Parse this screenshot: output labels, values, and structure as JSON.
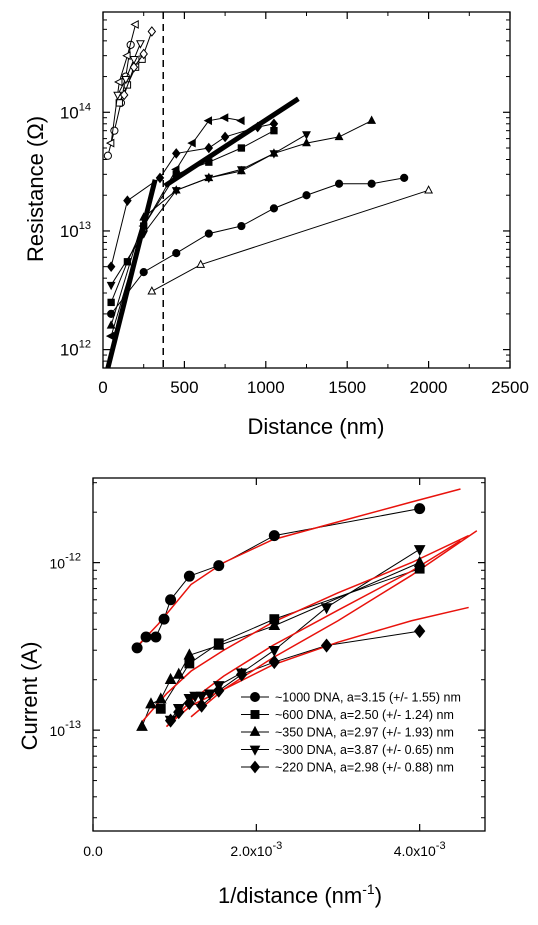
{
  "chart_data": [
    {
      "type": "line",
      "xlabel": "Distance (nm)",
      "ylabel": "Resistance (Ω)",
      "xlim": [
        0,
        2500
      ],
      "ylim": [
        700000000000.0,
        700000000000000.0
      ],
      "yscale": "log",
      "xticks": [
        0,
        500,
        1000,
        1500,
        2000,
        2500
      ],
      "xtick_labels": [
        "0",
        "500",
        "1000",
        "1500",
        "2000",
        "2500"
      ],
      "yticks": [
        1000000000000.0,
        10000000000000.0,
        100000000000000.0
      ],
      "ytick_labels": [
        {
          "base": "10",
          "exp": "12"
        },
        {
          "base": "10",
          "exp": "13"
        },
        {
          "base": "10",
          "exp": "14"
        }
      ],
      "vline_x": 370,
      "series": [
        {
          "marker": "circle",
          "filled": true,
          "x": [
            50,
            250,
            450,
            650,
            850,
            1050,
            1250,
            1450,
            1650,
            1850
          ],
          "y": [
            2000000000000.0,
            4500000000000.0,
            6500000000000.0,
            9500000000000.0,
            11000000000000.0,
            15500000000000.0,
            20000000000000.0,
            25000000000000.0,
            25000000000000.0,
            28000000000000.0
          ]
        },
        {
          "marker": "triangle-up",
          "filled": false,
          "x": [
            300,
            600,
            2000
          ],
          "y": [
            3100000000000.0,
            5200000000000.0,
            22000000000000.0
          ]
        },
        {
          "marker": "diamond",
          "filled": true,
          "x": [
            50,
            150,
            350,
            450,
            650,
            750,
            950,
            1050
          ],
          "y": [
            5000000000000.0,
            18000000000000.0,
            28000000000000.0,
            45000000000000.0,
            50000000000000.0,
            62000000000000.0,
            75000000000000.0,
            80000000000000.0
          ]
        },
        {
          "marker": "triangle-left",
          "filled": true,
          "x": [
            50,
            250,
            450,
            550,
            650,
            750,
            850
          ],
          "y": [
            1300000000000.0,
            11000000000000.0,
            33000000000000.0,
            55000000000000.0,
            85000000000000.0,
            90000000000000.0,
            85000000000000.0
          ]
        },
        {
          "marker": "square",
          "filled": true,
          "x": [
            50,
            150,
            250,
            450,
            650,
            850,
            1050
          ],
          "y": [
            2500000000000.0,
            5500000000000.0,
            11000000000000.0,
            30000000000000.0,
            38000000000000.0,
            50000000000000.0,
            70000000000000.0
          ]
        },
        {
          "marker": "triangle-up",
          "filled": true,
          "x": [
            50,
            250,
            450,
            650,
            850,
            1050,
            1250,
            1450,
            1650
          ],
          "y": [
            1600000000000.0,
            13000000000000.0,
            22000000000000.0,
            28000000000000.0,
            32000000000000.0,
            45000000000000.0,
            55000000000000.0,
            62000000000000.0,
            85000000000000.0
          ]
        },
        {
          "marker": "triangle-down",
          "filled": true,
          "x": [
            50,
            250,
            450,
            650,
            850,
            1050,
            1250
          ],
          "y": [
            3500000000000.0,
            9500000000000.0,
            22000000000000.0,
            28000000000000.0,
            33000000000000.0,
            45000000000000.0,
            65000000000000.0
          ]
        },
        {
          "marker": "circle",
          "filled": false,
          "x": [
            30,
            70,
            110,
            140,
            170
          ],
          "y": [
            43000000000000.0,
            70000000000000.0,
            120000000000000.0,
            200000000000000.0,
            370000000000000.0
          ]
        },
        {
          "marker": "square",
          "filled": false,
          "x": [
            100,
            150,
            200,
            240
          ],
          "y": [
            120000000000000.0,
            170000000000000.0,
            240000000000000.0,
            280000000000000.0
          ]
        },
        {
          "marker": "triangle-left",
          "filled": false,
          "x": [
            50,
            100,
            150,
            200
          ],
          "y": [
            55000000000000.0,
            180000000000000.0,
            300000000000000.0,
            550000000000000.0
          ]
        },
        {
          "marker": "triangle-down",
          "filled": false,
          "x": [
            90,
            140,
            190,
            230
          ],
          "y": [
            140000000000000.0,
            190000000000000.0,
            280000000000000.0,
            380000000000000.0
          ]
        },
        {
          "marker": "diamond",
          "filled": false,
          "x": [
            130,
            190,
            250,
            300
          ],
          "y": [
            140000000000000.0,
            240000000000000.0,
            310000000000000.0,
            480000000000000.0
          ]
        }
      ],
      "fits": [
        {
          "x": [
            30,
            320
          ],
          "y": [
            700000000000.0,
            27000000000000.0
          ]
        },
        {
          "x": [
            380,
            1200
          ],
          "y": [
            24000000000000.0,
            130000000000000.0
          ]
        }
      ]
    },
    {
      "type": "scatter",
      "xlabel": "1/distance (nm",
      "xlabel_sup": "-1",
      "xlabel_end": ")",
      "ylabel": "Current (A)",
      "xlim": [
        0,
        0.0048
      ],
      "ylim": [
        2.5e-14,
        3.2e-12
      ],
      "yscale": "log",
      "xticks": [
        0,
        0.002,
        0.004
      ],
      "xtick_labels": [
        {
          "base": "0.0",
          "exp": ""
        },
        {
          "base": "2.0x10",
          "exp": "-3"
        },
        {
          "base": "4.0x10",
          "exp": "-3"
        }
      ],
      "yticks": [
        1e-13,
        1e-12
      ],
      "ytick_labels": [
        {
          "base": "10",
          "exp": "-13"
        },
        {
          "base": "10",
          "exp": "-12"
        }
      ],
      "fit_color": "#e8120c",
      "series": [
        {
          "name": "~1000 DNA, a=3.15 (+/- 1.55) nm",
          "marker": "circle",
          "x": [
            0.00054,
            0.00065,
            0.00077,
            0.00087,
            0.00095,
            0.00118,
            0.00154,
            0.00222,
            0.004
          ],
          "y": [
            3.1e-13,
            3.6e-13,
            3.6e-13,
            4.6e-13,
            6e-13,
            8.3e-13,
            9.6e-13,
            1.45e-12,
            2.1e-12
          ]
        },
        {
          "name": "~600 DNA, a=2.50 (+/- 1.24) nm",
          "marker": "square",
          "x": [
            0.00083,
            0.00118,
            0.00154,
            0.00222,
            0.004
          ],
          "y": [
            1.34e-13,
            2.5e-13,
            3.3e-13,
            4.6e-13,
            9.2e-13
          ]
        },
        {
          "name": "~350 DNA, a=2.97 (+/- 1.93) nm",
          "marker": "triangle-up",
          "x": [
            0.0006,
            0.00071,
            0.00083,
            0.00095,
            0.00105,
            0.00118,
            0.00154,
            0.00222,
            0.004
          ],
          "y": [
            1.05e-13,
            1.43e-13,
            1.53e-13,
            2e-13,
            2.15e-13,
            2.8e-13,
            3.2e-13,
            4.2e-13,
            1e-12
          ]
        },
        {
          "name": "~300 DNA, a=3.87 (+/- 0.65) nm",
          "marker": "triangle-down",
          "x": [
            0.00095,
            0.00105,
            0.00118,
            0.00125,
            0.00133,
            0.00143,
            0.00154,
            0.00182,
            0.00222,
            0.00286,
            0.004
          ],
          "y": [
            1.15e-13,
            1.35e-13,
            1.55e-13,
            1.6e-13,
            1.6e-13,
            1.65e-13,
            1.85e-13,
            2.2e-13,
            3e-13,
            5.4e-13,
            1.2e-12
          ]
        },
        {
          "name": "~220 DNA, a=2.98 (+/- 0.88) nm",
          "marker": "diamond",
          "x": [
            0.00095,
            0.00105,
            0.00118,
            0.00133,
            0.00154,
            0.00182,
            0.00222,
            0.00286,
            0.004
          ],
          "y": [
            1.14e-13,
            1.28e-13,
            1.45e-13,
            1.4e-13,
            1.72e-13,
            2.15e-13,
            2.55e-13,
            3.2e-13,
            3.9e-13
          ]
        }
      ],
      "fits": [
        {
          "x": [
            0.00055,
            0.0008,
            0.0012,
            0.0016,
            0.0022,
            0.003,
            0.0039,
            0.0045
          ],
          "y": [
            3.2e-13,
            4.3e-13,
            7.4e-13,
            1e-12,
            1.37e-12,
            1.75e-12,
            2.3e-12,
            2.75e-12
          ]
        },
        {
          "x": [
            0.0006,
            0.0009,
            0.0012,
            0.0016,
            0.0022,
            0.003,
            0.0039,
            0.0046
          ],
          "y": [
            1.12e-13,
            1.65e-13,
            2.25e-13,
            3e-13,
            4.4e-13,
            6.6e-13,
            1e-12,
            1.45e-12
          ]
        },
        {
          "x": [
            0.0009,
            0.0012,
            0.0016,
            0.0022,
            0.003,
            0.0039,
            0.0045
          ],
          "y": [
            1.05e-13,
            1.5e-13,
            2.1e-13,
            3.2e-13,
            5.2e-13,
            8.9e-13,
            1.35e-12
          ]
        },
        {
          "x": [
            0.0012,
            0.0016,
            0.0022,
            0.003,
            0.0039,
            0.0047
          ],
          "y": [
            1.2e-13,
            1.75e-13,
            2.7e-13,
            4.5e-13,
            8.4e-13,
            1.55e-12
          ]
        },
        {
          "x": [
            0.0009,
            0.0012,
            0.0016,
            0.0022,
            0.003,
            0.0039,
            0.0046
          ],
          "y": [
            1.05e-13,
            1.4e-13,
            1.75e-13,
            2.45e-13,
            3.35e-13,
            4.5e-13,
            5.4e-13
          ]
        }
      ]
    }
  ]
}
